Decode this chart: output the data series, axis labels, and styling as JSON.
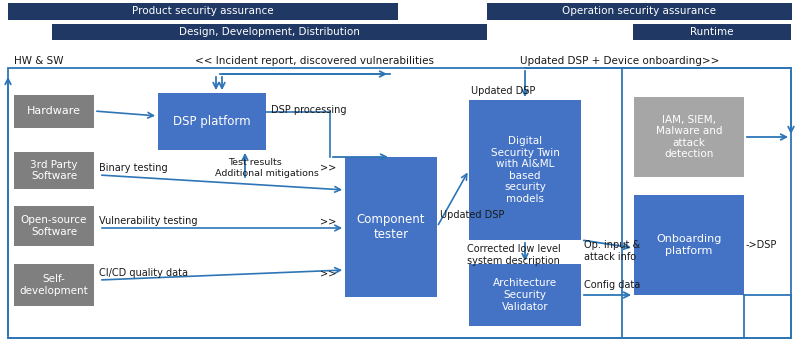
{
  "bg_color": "#ffffff",
  "dark_blue": "#1f3864",
  "mid_blue": "#2e75b6",
  "light_blue": "#4472c4",
  "gray_box": "#7f7f7f",
  "light_gray": "#a6a6a6",
  "arrow_color": "#2e75b6",
  "text_white": "#ffffff",
  "text_dark": "#1a1a1a",
  "banner1_label": "Product security assurance",
  "banner2_label": "Operation security assurance",
  "banner3_label": "Design, Development, Distribution",
  "banner4_label": "Runtime",
  "label_hw_sw": "HW & SW",
  "label_incident": "<< Incident report, discovered vulnerabilities",
  "label_updated_onboard": "Updated DSP + Device onboarding>>",
  "label_dsp_processing": "DSP processing",
  "label_test_results": "Test results",
  "label_additional_mitigations": "Additional mitigations",
  "label_binary_testing": "Binary testing",
  "label_vulnerability_testing": "Vulnerability testing",
  "label_cicd": "CI/CD quality data",
  "label_updated_dsp_left": "Updated DSP",
  "label_updated_dsp_top": "Updated DSP",
  "label_corrected": "Corrected low level\nsystem description",
  "label_op_input": "Op. input &\nattack info",
  "label_config_data": "Config data",
  "label_dsp_arrow": "->DSP",
  "label_arrows": ">>",
  "box_hardware": "Hardware",
  "box_3rdparty": "3rd Party\nSoftware",
  "box_opensource": "Open-source\nSoftware",
  "box_selfdevel": "Self-\ndevelopment",
  "box_dsp": "DSP platform",
  "box_component": "Component\ntester",
  "box_digital": "Digital\nSecurity Twin\nwith AI&ML\nbased\nsecurity\nmodels",
  "box_iam": "IAM, SIEM,\nMalware and\nattack\ndetection",
  "box_arch": "Architecture\nSecurity\nValidator",
  "box_onboard": "Onboarding\nplatform"
}
